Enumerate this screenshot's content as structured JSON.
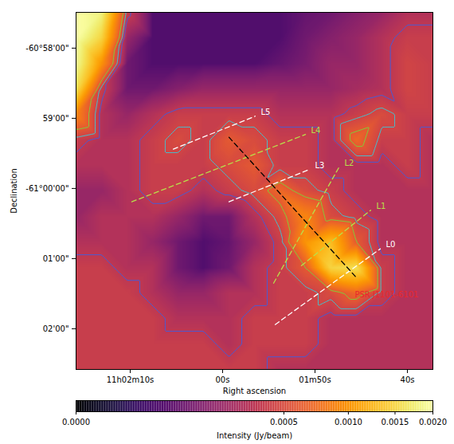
{
  "chart_data": {
    "type": "heatmap",
    "xlabel": "Right ascension",
    "ylabel": "Declination",
    "xlim": [
      75.86,
      37.24
    ],
    "ylim": [
      -2.58,
      2.51
    ],
    "xticks": [
      {
        "value": 70,
        "label": "11h02m10s"
      },
      {
        "value": 60,
        "label": "00s"
      },
      {
        "value": 50,
        "label": "01m50s"
      },
      {
        "value": 40,
        "label": "40s"
      }
    ],
    "yticks": [
      {
        "value": 2,
        "label": "-60°58'00\""
      },
      {
        "value": 1,
        "label": "59'00\""
      },
      {
        "value": 0,
        "label": "-61°00'00\""
      },
      {
        "value": -1,
        "label": "01'00\""
      },
      {
        "value": -2,
        "label": "02'00\""
      }
    ],
    "intensity": {
      "x": [
        75.86,
        73.1,
        70.34,
        67.59,
        64.83,
        62.07,
        59.31,
        56.55,
        53.79,
        51.03,
        48.28,
        45.52,
        42.76,
        40.0,
        37.24
      ],
      "y": [
        2.51,
        2.15,
        1.78,
        1.42,
        1.06,
        0.69,
        0.33,
        -0.03,
        -0.4,
        -0.76,
        -1.13,
        -1.49,
        -1.85,
        -2.22,
        -2.58
      ],
      "values": [
        [
          0.002,
          0.0018,
          0.0004,
          5e-05,
          5e-05,
          5e-05,
          5e-05,
          5e-05,
          5e-05,
          8e-05,
          0.0001,
          0.00015,
          0.0002,
          0.0003,
          0.0003
        ],
        [
          0.002,
          0.0015,
          0.0002,
          5e-05,
          5e-05,
          5e-05,
          5e-05,
          5e-05,
          5e-05,
          0.0001,
          0.00015,
          0.0002,
          0.0003,
          0.0004,
          0.0004
        ],
        [
          0.0019,
          0.001,
          0.0001,
          5e-05,
          5e-05,
          5e-05,
          5e-05,
          5e-05,
          8e-05,
          0.00012,
          0.0002,
          0.0002,
          0.0003,
          0.00045,
          0.0004
        ],
        [
          0.0016,
          0.0004,
          0.0001,
          0.0001,
          0.00015,
          0.0002,
          0.0002,
          0.0002,
          0.0002,
          0.0002,
          0.0002,
          0.00025,
          0.0003,
          0.00045,
          0.0004
        ],
        [
          0.0009,
          0.0003,
          0.0002,
          0.0003,
          0.0004,
          0.0004,
          0.0004,
          0.0004,
          0.0003,
          0.0003,
          0.0003,
          0.0004,
          0.0005,
          0.0004,
          0.0004
        ],
        [
          0.0004,
          0.0003,
          0.0003,
          0.0004,
          0.0005,
          0.0004,
          0.0006,
          0.0005,
          0.0004,
          0.0004,
          0.0003,
          0.0007,
          0.0004,
          0.0004,
          0.0003
        ],
        [
          0.0003,
          0.0003,
          0.0003,
          0.0004,
          0.0004,
          0.0004,
          0.0005,
          0.0006,
          0.0004,
          0.0004,
          0.0003,
          0.0003,
          0.0003,
          0.0004,
          0.0003
        ],
        [
          0.0002,
          0.0002,
          0.0003,
          0.0004,
          0.0004,
          0.0003,
          0.0004,
          0.0005,
          0.0007,
          0.0005,
          0.0004,
          0.0003,
          0.0003,
          0.0003,
          0.0003
        ],
        [
          0.0002,
          0.0003,
          0.0003,
          0.0003,
          0.0002,
          0.0001,
          0.0001,
          0.0003,
          0.0005,
          0.0009,
          0.0005,
          0.0004,
          0.0003,
          0.0003,
          0.0003
        ],
        [
          0.0003,
          0.0003,
          0.0003,
          0.0002,
          0.0001,
          5e-05,
          8e-05,
          0.0002,
          0.0004,
          0.001,
          0.0013,
          0.0006,
          0.0003,
          0.0003,
          0.0003
        ],
        [
          0.0004,
          0.0004,
          0.0003,
          0.0003,
          0.0001,
          5e-05,
          0.0001,
          0.0003,
          0.0004,
          0.0006,
          0.0015,
          0.0016,
          0.0004,
          0.0003,
          0.0003
        ],
        [
          0.0004,
          0.0004,
          0.0004,
          0.0003,
          0.0002,
          0.0002,
          0.0003,
          0.0003,
          0.0004,
          0.0004,
          0.0005,
          0.0007,
          0.0004,
          0.0003,
          0.0003
        ],
        [
          0.0004,
          0.0004,
          0.0004,
          0.0004,
          0.0003,
          0.0003,
          0.0003,
          0.0004,
          0.0004,
          0.0004,
          0.0003,
          0.0003,
          0.0003,
          0.0003,
          0.0003
        ],
        [
          0.0004,
          0.0004,
          0.0004,
          0.0004,
          0.0004,
          0.0004,
          0.0003,
          0.0004,
          0.0004,
          0.0004,
          0.0003,
          0.0003,
          0.0003,
          0.0003,
          0.0003
        ],
        [
          0.0004,
          0.0004,
          0.0004,
          0.0004,
          0.0004,
          0.0004,
          0.0004,
          0.0004,
          0.0003,
          0.0003,
          0.0003,
          0.0003,
          0.0003,
          0.0003,
          0.0003
        ]
      ]
    },
    "colorbar": {
      "label": "Intensity (Jy/beam)",
      "lim": [
        0,
        0.002
      ],
      "ticks": [
        {
          "value": 0,
          "label": "0.0000"
        },
        {
          "value": 0.0005,
          "label": "0.0005"
        },
        {
          "value": 0.001,
          "label": "0.0010"
        },
        {
          "value": 0.0015,
          "label": "0.0015"
        },
        {
          "value": 0.002,
          "label": "0.0020"
        }
      ]
    },
    "contours": {
      "levels": [
        0.00035,
        0.00045,
        0.0006
      ],
      "colors": [
        "#3f5fe0",
        "#3cc8d8",
        "#7cd43a"
      ]
    },
    "lines": [
      {
        "name": "L0",
        "color": "#ffffff",
        "line_style": "dashed",
        "x": [
          54.31,
          42.93
        ],
        "y": [
          -1.94,
          -0.86
        ]
      },
      {
        "name": "L1",
        "color": "#b8e04a",
        "line_style": "dashed",
        "x": [
          51.47,
          43.97
        ],
        "y": [
          -1.1,
          -0.31
        ]
      },
      {
        "name": "L2",
        "color": "#b8e04a",
        "line_style": "dashed",
        "x": [
          54.48,
          47.41
        ],
        "y": [
          -1.35,
          0.3
        ]
      },
      {
        "name": "L3",
        "color": "#ffffff",
        "line_style": "dashed",
        "x": [
          59.31,
          50.6
        ],
        "y": [
          -0.19,
          0.27
        ]
      },
      {
        "name": "L4",
        "color": "#b8e04a",
        "line_style": "dashed",
        "x": [
          69.83,
          51.03
        ],
        "y": [
          -0.19,
          0.77
        ]
      },
      {
        "name": "L5",
        "color": "#ffffff",
        "line_style": "dashed",
        "x": [
          65.34,
          56.47
        ],
        "y": [
          0.56,
          1.03
        ]
      },
      {
        "color": "#000000",
        "line_style": "dashed",
        "x": [
          59.31,
          45.52
        ],
        "y": [
          0.73,
          -1.27
        ]
      }
    ],
    "annotations": [
      {
        "text": "PSR J1101-6101",
        "x": 45.52,
        "y": -1.27,
        "color": "#e8282d"
      }
    ]
  }
}
